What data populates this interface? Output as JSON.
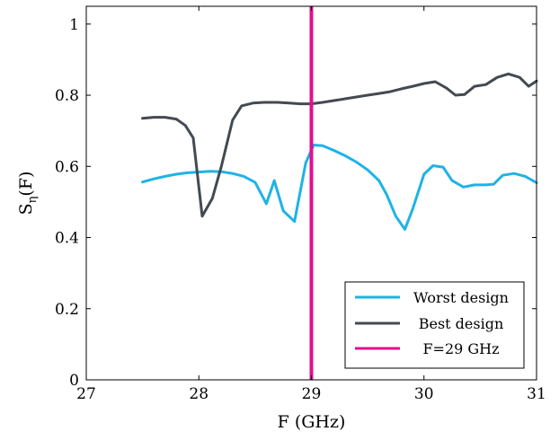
{
  "chart_data": {
    "type": "line",
    "title": "",
    "xlabel": "F (GHz)",
    "ylabel": "Sη(F)",
    "ylabel_main": "S",
    "ylabel_sub": "η",
    "ylabel_rest": "(F)",
    "xlim": [
      27,
      31
    ],
    "ylim": [
      0,
      1.05
    ],
    "xticks": [
      27,
      28,
      29,
      30,
      31
    ],
    "yticks": [
      0,
      0.2,
      0.4,
      0.6,
      0.8,
      1
    ],
    "xtick_labels": [
      "27",
      "28",
      "29",
      "30",
      "31"
    ],
    "ytick_labels": [
      "0",
      "0.2",
      "0.4",
      "0.6",
      "0.8",
      "1"
    ],
    "grid": false,
    "legend_position": "bottom-right",
    "series": [
      {
        "name": "Worst design",
        "color": "#1fb3e5",
        "x": [
          27.5,
          27.6,
          27.7,
          27.8,
          27.9,
          28.0,
          28.1,
          28.2,
          28.3,
          28.4,
          28.5,
          28.6,
          28.67,
          28.75,
          28.85,
          28.95,
          29.02,
          29.1,
          29.2,
          29.3,
          29.4,
          29.5,
          29.6,
          29.67,
          29.75,
          29.83,
          29.9,
          30.0,
          30.08,
          30.17,
          30.25,
          30.35,
          30.45,
          30.55,
          30.62,
          30.7,
          30.8,
          30.9,
          31.0
        ],
        "y": [
          0.556,
          0.565,
          0.572,
          0.578,
          0.582,
          0.584,
          0.586,
          0.585,
          0.58,
          0.572,
          0.555,
          0.495,
          0.56,
          0.475,
          0.445,
          0.61,
          0.66,
          0.658,
          0.645,
          0.63,
          0.612,
          0.59,
          0.56,
          0.52,
          0.46,
          0.423,
          0.48,
          0.578,
          0.602,
          0.598,
          0.56,
          0.542,
          0.548,
          0.548,
          0.55,
          0.575,
          0.58,
          0.572,
          0.554
        ]
      },
      {
        "name": "Best design",
        "color": "#434a52",
        "x": [
          27.5,
          27.6,
          27.7,
          27.8,
          27.88,
          27.95,
          28.03,
          28.12,
          28.2,
          28.3,
          28.38,
          28.48,
          28.58,
          28.7,
          28.8,
          28.9,
          29.0,
          29.1,
          29.2,
          29.3,
          29.4,
          29.5,
          29.6,
          29.7,
          29.8,
          29.9,
          30.0,
          30.1,
          30.2,
          30.28,
          30.36,
          30.45,
          30.55,
          30.65,
          30.75,
          30.85,
          30.93,
          31.0
        ],
        "y": [
          0.735,
          0.738,
          0.738,
          0.733,
          0.715,
          0.68,
          0.46,
          0.51,
          0.6,
          0.73,
          0.77,
          0.778,
          0.78,
          0.78,
          0.778,
          0.776,
          0.776,
          0.78,
          0.785,
          0.79,
          0.795,
          0.8,
          0.805,
          0.81,
          0.818,
          0.825,
          0.833,
          0.838,
          0.82,
          0.8,
          0.802,
          0.825,
          0.83,
          0.85,
          0.86,
          0.85,
          0.825,
          0.84
        ]
      }
    ],
    "vline": {
      "name": "F=29 GHz",
      "x": 29,
      "color": "#e20f8d"
    }
  }
}
